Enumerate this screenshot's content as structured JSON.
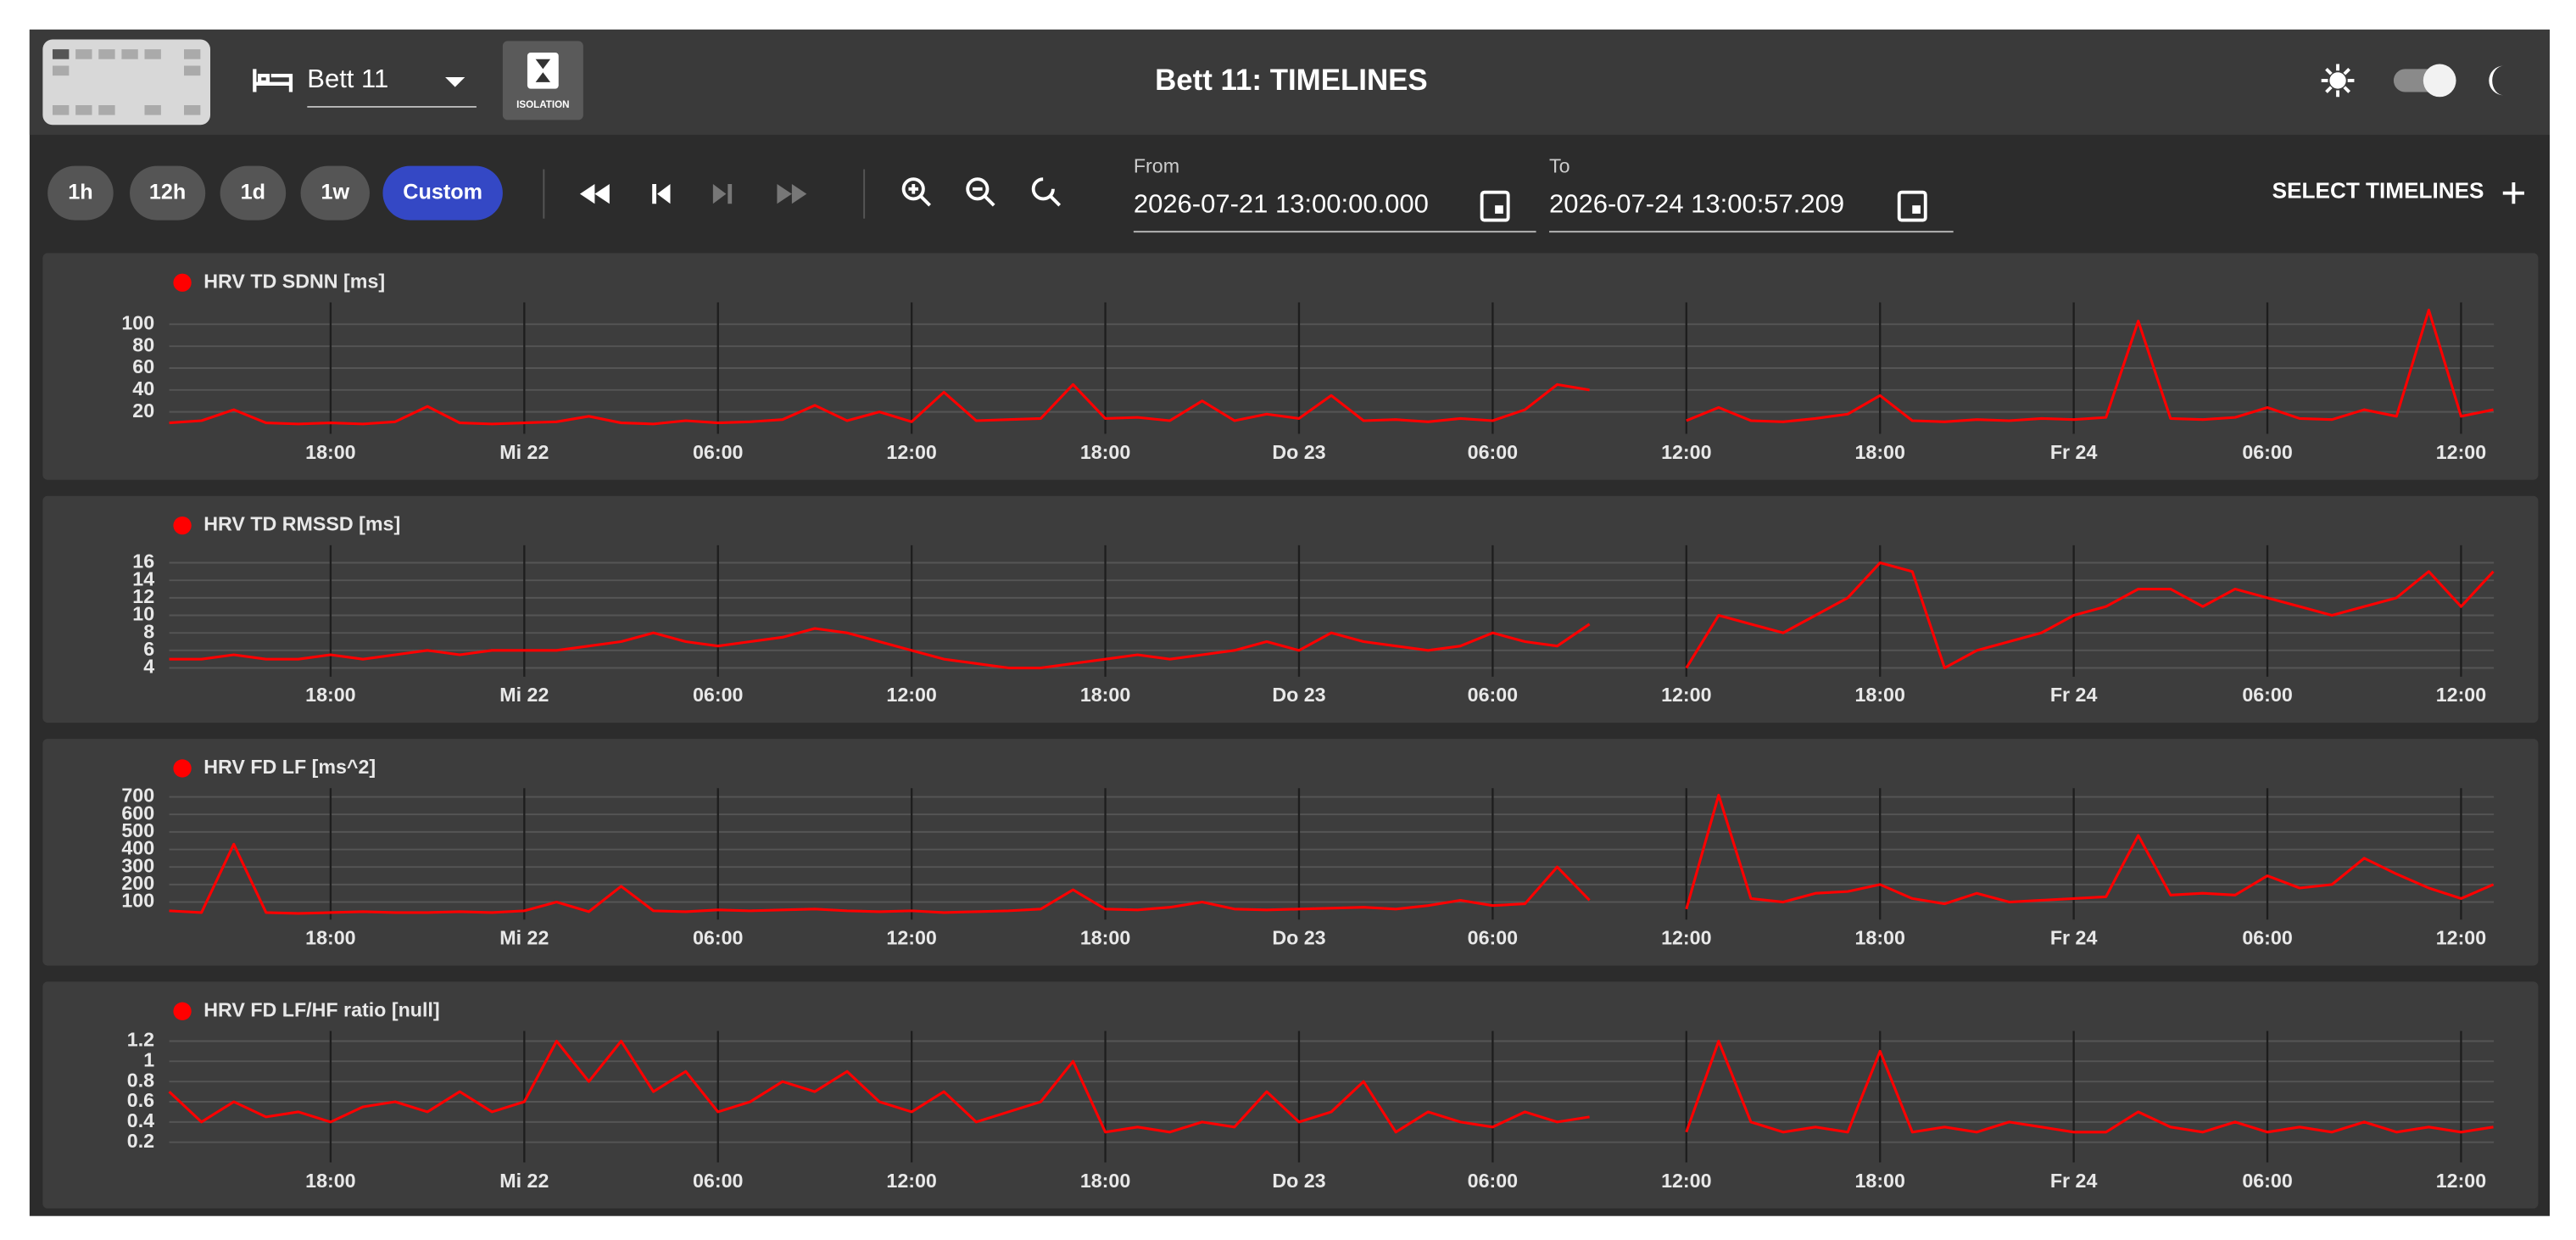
{
  "header": {
    "bed": "Bett 11",
    "isolation": "ISOLATION",
    "title": "Bett 11: TIMELINES"
  },
  "toolbar": {
    "ranges": [
      "1h",
      "12h",
      "1d",
      "1w",
      "Custom"
    ],
    "from_label": "From",
    "from": "2026-07-21 13:00:00.000",
    "to_label": "To",
    "to": "2026-07-24 13:00:57.209",
    "select": "SELECT TIMELINES"
  },
  "chart_data": [
    {
      "type": "line",
      "x": [
        "2026-07-21 13:00",
        "2026-07-21 14:00",
        "2026-07-21 15:00",
        "2026-07-21 16:00",
        "2026-07-21 17:00",
        "2026-07-21 18:00",
        "2026-07-21 19:00",
        "2026-07-21 20:00",
        "2026-07-21 21:00",
        "2026-07-21 22:00",
        "2026-07-21 23:00",
        "2026-07-22 00:00",
        "2026-07-22 01:00",
        "2026-07-22 02:00",
        "2026-07-22 03:00",
        "2026-07-22 04:00",
        "2026-07-22 05:00",
        "2026-07-22 06:00",
        "2026-07-22 07:00",
        "2026-07-22 08:00",
        "2026-07-22 09:00",
        "2026-07-22 10:00",
        "2026-07-22 11:00",
        "2026-07-22 12:00",
        "2026-07-22 13:00",
        "2026-07-22 14:00",
        "2026-07-22 15:00",
        "2026-07-22 16:00",
        "2026-07-22 17:00",
        "2026-07-22 18:00",
        "2026-07-22 19:00",
        "2026-07-22 20:00",
        "2026-07-22 21:00",
        "2026-07-22 22:00",
        "2026-07-22 23:00",
        "2026-07-23 00:00",
        "2026-07-23 01:00",
        "2026-07-23 02:00",
        "2026-07-23 03:00",
        "2026-07-23 04:00",
        "2026-07-23 05:00",
        "2026-07-23 06:00",
        "2026-07-23 07:00",
        "2026-07-23 08:00",
        "2026-07-23 09:00",
        "2026-07-23 10:00",
        "2026-07-23 11:00",
        "2026-07-23 12:00",
        "2026-07-23 13:00",
        "2026-07-23 14:00",
        "2026-07-23 15:00",
        "2026-07-23 16:00",
        "2026-07-23 17:00",
        "2026-07-23 18:00",
        "2026-07-23 19:00",
        "2026-07-23 20:00",
        "2026-07-23 21:00",
        "2026-07-23 22:00",
        "2026-07-23 23:00",
        "2026-07-24 00:00",
        "2026-07-24 01:00",
        "2026-07-24 02:00",
        "2026-07-24 03:00",
        "2026-07-24 04:00",
        "2026-07-24 05:00",
        "2026-07-24 06:00",
        "2026-07-24 07:00",
        "2026-07-24 08:00",
        "2026-07-24 09:00",
        "2026-07-24 10:00",
        "2026-07-24 11:00",
        "2026-07-24 12:00",
        "2026-07-24 13:00"
      ],
      "series": [
        {
          "name": "HRV TD SDNN [ms]",
          "color": "#ff0000",
          "values": [
            10,
            12,
            22,
            10,
            9,
            10,
            9,
            11,
            25,
            10,
            9,
            10,
            11,
            16,
            10,
            9,
            12,
            10,
            11,
            13,
            26,
            12,
            20,
            11,
            38,
            12,
            13,
            14,
            45,
            14,
            15,
            12,
            30,
            12,
            18,
            14,
            35,
            12,
            13,
            11,
            14,
            12,
            22,
            45,
            40,
            null,
            null,
            12,
            24,
            12,
            11,
            14,
            18,
            35,
            12,
            11,
            13,
            12,
            14,
            13,
            15,
            103,
            14,
            13,
            15,
            24,
            14,
            13,
            22,
            16,
            113,
            16,
            22
          ]
        }
      ],
      "xlim": [
        "2026-07-21 13:00:00.000",
        "2026-07-24 13:00:57.209"
      ],
      "xticks": [
        {
          "value": "2026-07-21 18:00",
          "label": "18:00"
        },
        {
          "value": "2026-07-22 00:00",
          "label": "Mi 22"
        },
        {
          "value": "2026-07-22 06:00",
          "label": "06:00"
        },
        {
          "value": "2026-07-22 12:00",
          "label": "12:00"
        },
        {
          "value": "2026-07-22 18:00",
          "label": "18:00"
        },
        {
          "value": "2026-07-23 00:00",
          "label": "Do 23"
        },
        {
          "value": "2026-07-23 06:00",
          "label": "06:00"
        },
        {
          "value": "2026-07-23 12:00",
          "label": "12:00"
        },
        {
          "value": "2026-07-23 18:00",
          "label": "18:00"
        },
        {
          "value": "2026-07-24 00:00",
          "label": "Fr 24"
        },
        {
          "value": "2026-07-24 06:00",
          "label": "06:00"
        },
        {
          "value": "2026-07-24 12:00",
          "label": "12:00"
        }
      ],
      "ylim": [
        0,
        120
      ],
      "yticks": [
        20,
        40,
        60,
        80,
        100
      ],
      "grid": true
    },
    {
      "type": "line",
      "x": [
        "2026-07-21 13:00",
        "2026-07-21 14:00",
        "2026-07-21 15:00",
        "2026-07-21 16:00",
        "2026-07-21 17:00",
        "2026-07-21 18:00",
        "2026-07-21 19:00",
        "2026-07-21 20:00",
        "2026-07-21 21:00",
        "2026-07-21 22:00",
        "2026-07-21 23:00",
        "2026-07-22 00:00",
        "2026-07-22 01:00",
        "2026-07-22 02:00",
        "2026-07-22 03:00",
        "2026-07-22 04:00",
        "2026-07-22 05:00",
        "2026-07-22 06:00",
        "2026-07-22 07:00",
        "2026-07-22 08:00",
        "2026-07-22 09:00",
        "2026-07-22 10:00",
        "2026-07-22 11:00",
        "2026-07-22 12:00",
        "2026-07-22 13:00",
        "2026-07-22 14:00",
        "2026-07-22 15:00",
        "2026-07-22 16:00",
        "2026-07-22 17:00",
        "2026-07-22 18:00",
        "2026-07-22 19:00",
        "2026-07-22 20:00",
        "2026-07-22 21:00",
        "2026-07-22 22:00",
        "2026-07-22 23:00",
        "2026-07-23 00:00",
        "2026-07-23 01:00",
        "2026-07-23 02:00",
        "2026-07-23 03:00",
        "2026-07-23 04:00",
        "2026-07-23 05:00",
        "2026-07-23 06:00",
        "2026-07-23 07:00",
        "2026-07-23 08:00",
        "2026-07-23 09:00",
        "2026-07-23 10:00",
        "2026-07-23 11:00",
        "2026-07-23 12:00",
        "2026-07-23 13:00",
        "2026-07-23 14:00",
        "2026-07-23 15:00",
        "2026-07-23 16:00",
        "2026-07-23 17:00",
        "2026-07-23 18:00",
        "2026-07-23 19:00",
        "2026-07-23 20:00",
        "2026-07-23 21:00",
        "2026-07-23 22:00",
        "2026-07-23 23:00",
        "2026-07-24 00:00",
        "2026-07-24 01:00",
        "2026-07-24 02:00",
        "2026-07-24 03:00",
        "2026-07-24 04:00",
        "2026-07-24 05:00",
        "2026-07-24 06:00",
        "2026-07-24 07:00",
        "2026-07-24 08:00",
        "2026-07-24 09:00",
        "2026-07-24 10:00",
        "2026-07-24 11:00",
        "2026-07-24 12:00",
        "2026-07-24 13:00"
      ],
      "series": [
        {
          "name": "HRV TD RMSSD [ms]",
          "color": "#ff0000",
          "values": [
            5,
            5,
            5.5,
            5,
            5,
            5.5,
            5,
            5.5,
            6,
            5.5,
            6,
            6,
            6,
            6.5,
            7,
            8,
            7,
            6.5,
            7,
            7.5,
            8.5,
            8,
            7,
            6,
            5,
            4.5,
            4,
            4,
            4.5,
            5,
            5.5,
            5,
            5.5,
            6,
            7,
            6,
            8,
            7,
            6.5,
            6,
            6.5,
            8,
            7,
            6.5,
            9,
            null,
            null,
            4,
            10,
            9,
            8,
            10,
            12,
            16,
            15,
            4,
            6,
            7,
            8,
            10,
            11,
            13,
            13,
            11,
            13,
            12,
            11,
            10,
            11,
            12,
            15,
            11,
            15
          ]
        }
      ],
      "xlim": [
        "2026-07-21 13:00:00.000",
        "2026-07-24 13:00:57.209"
      ],
      "xticks": [
        {
          "value": "2026-07-21 18:00",
          "label": "18:00"
        },
        {
          "value": "2026-07-22 00:00",
          "label": "Mi 22"
        },
        {
          "value": "2026-07-22 06:00",
          "label": "06:00"
        },
        {
          "value": "2026-07-22 12:00",
          "label": "12:00"
        },
        {
          "value": "2026-07-22 18:00",
          "label": "18:00"
        },
        {
          "value": "2026-07-23 00:00",
          "label": "Do 23"
        },
        {
          "value": "2026-07-23 06:00",
          "label": "06:00"
        },
        {
          "value": "2026-07-23 12:00",
          "label": "12:00"
        },
        {
          "value": "2026-07-23 18:00",
          "label": "18:00"
        },
        {
          "value": "2026-07-24 00:00",
          "label": "Fr 24"
        },
        {
          "value": "2026-07-24 06:00",
          "label": "06:00"
        },
        {
          "value": "2026-07-24 12:00",
          "label": "12:00"
        }
      ],
      "ylim": [
        3,
        18
      ],
      "yticks": [
        4,
        6,
        8,
        10,
        12,
        14,
        16
      ],
      "grid": true
    },
    {
      "type": "line",
      "x": [
        "2026-07-21 13:00",
        "2026-07-21 14:00",
        "2026-07-21 15:00",
        "2026-07-21 16:00",
        "2026-07-21 17:00",
        "2026-07-21 18:00",
        "2026-07-21 19:00",
        "2026-07-21 20:00",
        "2026-07-21 21:00",
        "2026-07-21 22:00",
        "2026-07-21 23:00",
        "2026-07-22 00:00",
        "2026-07-22 01:00",
        "2026-07-22 02:00",
        "2026-07-22 03:00",
        "2026-07-22 04:00",
        "2026-07-22 05:00",
        "2026-07-22 06:00",
        "2026-07-22 07:00",
        "2026-07-22 08:00",
        "2026-07-22 09:00",
        "2026-07-22 10:00",
        "2026-07-22 11:00",
        "2026-07-22 12:00",
        "2026-07-22 13:00",
        "2026-07-22 14:00",
        "2026-07-22 15:00",
        "2026-07-22 16:00",
        "2026-07-22 17:00",
        "2026-07-22 18:00",
        "2026-07-22 19:00",
        "2026-07-22 20:00",
        "2026-07-22 21:00",
        "2026-07-22 22:00",
        "2026-07-22 23:00",
        "2026-07-23 00:00",
        "2026-07-23 01:00",
        "2026-07-23 02:00",
        "2026-07-23 03:00",
        "2026-07-23 04:00",
        "2026-07-23 05:00",
        "2026-07-23 06:00",
        "2026-07-23 07:00",
        "2026-07-23 08:00",
        "2026-07-23 09:00",
        "2026-07-23 10:00",
        "2026-07-23 11:00",
        "2026-07-23 12:00",
        "2026-07-23 13:00",
        "2026-07-23 14:00",
        "2026-07-23 15:00",
        "2026-07-23 16:00",
        "2026-07-23 17:00",
        "2026-07-23 18:00",
        "2026-07-23 19:00",
        "2026-07-23 20:00",
        "2026-07-23 21:00",
        "2026-07-23 22:00",
        "2026-07-23 23:00",
        "2026-07-24 00:00",
        "2026-07-24 01:00",
        "2026-07-24 02:00",
        "2026-07-24 03:00",
        "2026-07-24 04:00",
        "2026-07-24 05:00",
        "2026-07-24 06:00",
        "2026-07-24 07:00",
        "2026-07-24 08:00",
        "2026-07-24 09:00",
        "2026-07-24 10:00",
        "2026-07-24 11:00",
        "2026-07-24 12:00",
        "2026-07-24 13:00"
      ],
      "series": [
        {
          "name": "HRV FD LF [ms^2]",
          "color": "#ff0000",
          "values": [
            50,
            40,
            430,
            40,
            35,
            40,
            45,
            40,
            40,
            45,
            40,
            50,
            100,
            45,
            190,
            50,
            45,
            55,
            50,
            55,
            60,
            50,
            45,
            50,
            40,
            45,
            50,
            60,
            170,
            60,
            55,
            70,
            100,
            60,
            55,
            60,
            65,
            70,
            60,
            80,
            110,
            80,
            90,
            300,
            110,
            null,
            null,
            60,
            710,
            120,
            100,
            150,
            160,
            200,
            120,
            90,
            150,
            100,
            110,
            120,
            130,
            480,
            140,
            150,
            140,
            250,
            180,
            200,
            350,
            260,
            180,
            120,
            200
          ]
        }
      ],
      "xlim": [
        "2026-07-21 13:00:00.000",
        "2026-07-24 13:00:57.209"
      ],
      "xticks": [
        {
          "value": "2026-07-21 18:00",
          "label": "18:00"
        },
        {
          "value": "2026-07-22 00:00",
          "label": "Mi 22"
        },
        {
          "value": "2026-07-22 06:00",
          "label": "06:00"
        },
        {
          "value": "2026-07-22 12:00",
          "label": "12:00"
        },
        {
          "value": "2026-07-22 18:00",
          "label": "18:00"
        },
        {
          "value": "2026-07-23 00:00",
          "label": "Do 23"
        },
        {
          "value": "2026-07-23 06:00",
          "label": "06:00"
        },
        {
          "value": "2026-07-23 12:00",
          "label": "12:00"
        },
        {
          "value": "2026-07-23 18:00",
          "label": "18:00"
        },
        {
          "value": "2026-07-24 00:00",
          "label": "Fr 24"
        },
        {
          "value": "2026-07-24 06:00",
          "label": "06:00"
        },
        {
          "value": "2026-07-24 12:00",
          "label": "12:00"
        }
      ],
      "ylim": [
        0,
        750
      ],
      "yticks": [
        100,
        200,
        300,
        400,
        500,
        600,
        700
      ],
      "grid": true
    },
    {
      "type": "line",
      "x": [
        "2026-07-21 13:00",
        "2026-07-21 14:00",
        "2026-07-21 15:00",
        "2026-07-21 16:00",
        "2026-07-21 17:00",
        "2026-07-21 18:00",
        "2026-07-21 19:00",
        "2026-07-21 20:00",
        "2026-07-21 21:00",
        "2026-07-21 22:00",
        "2026-07-21 23:00",
        "2026-07-22 00:00",
        "2026-07-22 01:00",
        "2026-07-22 02:00",
        "2026-07-22 03:00",
        "2026-07-22 04:00",
        "2026-07-22 05:00",
        "2026-07-22 06:00",
        "2026-07-22 07:00",
        "2026-07-22 08:00",
        "2026-07-22 09:00",
        "2026-07-22 10:00",
        "2026-07-22 11:00",
        "2026-07-22 12:00",
        "2026-07-22 13:00",
        "2026-07-22 14:00",
        "2026-07-22 15:00",
        "2026-07-22 16:00",
        "2026-07-22 17:00",
        "2026-07-22 18:00",
        "2026-07-22 19:00",
        "2026-07-22 20:00",
        "2026-07-22 21:00",
        "2026-07-22 22:00",
        "2026-07-22 23:00",
        "2026-07-23 00:00",
        "2026-07-23 01:00",
        "2026-07-23 02:00",
        "2026-07-23 03:00",
        "2026-07-23 04:00",
        "2026-07-23 05:00",
        "2026-07-23 06:00",
        "2026-07-23 07:00",
        "2026-07-23 08:00",
        "2026-07-23 09:00",
        "2026-07-23 10:00",
        "2026-07-23 11:00",
        "2026-07-23 12:00",
        "2026-07-23 13:00",
        "2026-07-23 14:00",
        "2026-07-23 15:00",
        "2026-07-23 16:00",
        "2026-07-23 17:00",
        "2026-07-23 18:00",
        "2026-07-23 19:00",
        "2026-07-23 20:00",
        "2026-07-23 21:00",
        "2026-07-23 22:00",
        "2026-07-23 23:00",
        "2026-07-24 00:00",
        "2026-07-24 01:00",
        "2026-07-24 02:00",
        "2026-07-24 03:00",
        "2026-07-24 04:00",
        "2026-07-24 05:00",
        "2026-07-24 06:00",
        "2026-07-24 07:00",
        "2026-07-24 08:00",
        "2026-07-24 09:00",
        "2026-07-24 10:00",
        "2026-07-24 11:00",
        "2026-07-24 12:00",
        "2026-07-24 13:00"
      ],
      "series": [
        {
          "name": "HRV FD LF/HF ratio [null]",
          "color": "#ff0000",
          "values": [
            0.7,
            0.4,
            0.6,
            0.45,
            0.5,
            0.4,
            0.55,
            0.6,
            0.5,
            0.7,
            0.5,
            0.6,
            1.2,
            0.8,
            1.2,
            0.7,
            0.9,
            0.5,
            0.6,
            0.8,
            0.7,
            0.9,
            0.6,
            0.5,
            0.7,
            0.4,
            0.5,
            0.6,
            1.0,
            0.3,
            0.35,
            0.3,
            0.4,
            0.35,
            0.7,
            0.4,
            0.5,
            0.8,
            0.3,
            0.5,
            0.4,
            0.35,
            0.5,
            0.4,
            0.45,
            null,
            null,
            0.3,
            1.2,
            0.4,
            0.3,
            0.35,
            0.3,
            1.1,
            0.3,
            0.35,
            0.3,
            0.4,
            0.35,
            0.3,
            0.3,
            0.5,
            0.35,
            0.3,
            0.4,
            0.3,
            0.35,
            0.3,
            0.4,
            0.3,
            0.35,
            0.3,
            0.35
          ]
        }
      ],
      "xlim": [
        "2026-07-21 13:00:00.000",
        "2026-07-24 13:00:57.209"
      ],
      "xticks": [
        {
          "value": "2026-07-21 18:00",
          "label": "18:00"
        },
        {
          "value": "2026-07-22 00:00",
          "label": "Mi 22"
        },
        {
          "value": "2026-07-22 06:00",
          "label": "06:00"
        },
        {
          "value": "2026-07-22 12:00",
          "label": "12:00"
        },
        {
          "value": "2026-07-22 18:00",
          "label": "18:00"
        },
        {
          "value": "2026-07-23 00:00",
          "label": "Do 23"
        },
        {
          "value": "2026-07-23 06:00",
          "label": "06:00"
        },
        {
          "value": "2026-07-23 12:00",
          "label": "12:00"
        },
        {
          "value": "2026-07-23 18:00",
          "label": "18:00"
        },
        {
          "value": "2026-07-24 00:00",
          "label": "Fr 24"
        },
        {
          "value": "2026-07-24 06:00",
          "label": "06:00"
        },
        {
          "value": "2026-07-24 12:00",
          "label": "12:00"
        }
      ],
      "ylim": [
        0,
        1.3
      ],
      "yticks": [
        0.2,
        0.4,
        0.6,
        0.8,
        1,
        1.2
      ],
      "grid": true
    }
  ]
}
